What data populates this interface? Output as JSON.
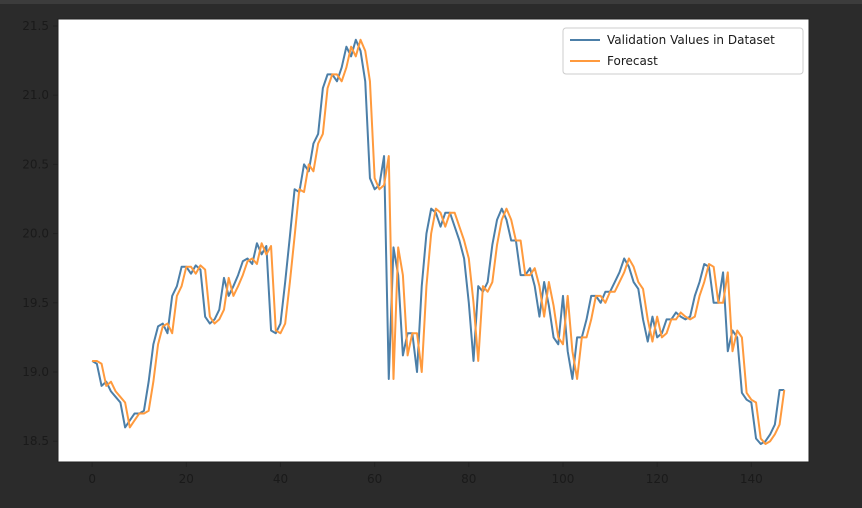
{
  "chart_data": {
    "type": "line",
    "title": "",
    "xlabel": "",
    "ylabel": "",
    "xlim": [
      -7.25,
      152.25
    ],
    "ylim": [
      18.35,
      21.55
    ],
    "x_ticks": [
      0,
      20,
      40,
      60,
      80,
      100,
      120,
      140
    ],
    "y_ticks": [
      18.5,
      19.0,
      19.5,
      20.0,
      20.5,
      21.0,
      21.5
    ],
    "x_tick_labels": [
      "0",
      "20",
      "40",
      "60",
      "80",
      "100",
      "120",
      "140"
    ],
    "y_tick_labels": [
      "18.5",
      "19.0",
      "19.5",
      "20.0",
      "20.5",
      "21.0",
      "21.5"
    ],
    "grid": false,
    "legend_position": "top-right",
    "series": [
      {
        "name": "Validation Values in Dataset",
        "color": "#4c7fa8",
        "x_start": 0,
        "values": [
          19.08,
          19.06,
          18.9,
          18.93,
          18.86,
          18.82,
          18.78,
          18.6,
          18.65,
          18.7,
          18.7,
          18.72,
          18.93,
          19.2,
          19.33,
          19.35,
          19.28,
          19.55,
          19.62,
          19.76,
          19.76,
          19.71,
          19.77,
          19.74,
          19.4,
          19.35,
          19.38,
          19.45,
          19.68,
          19.55,
          19.62,
          19.7,
          19.8,
          19.82,
          19.78,
          19.93,
          19.85,
          19.91,
          19.3,
          19.28,
          19.35,
          19.65,
          19.98,
          20.32,
          20.3,
          20.5,
          20.45,
          20.65,
          20.72,
          21.05,
          21.15,
          21.15,
          21.1,
          21.2,
          21.35,
          21.28,
          21.4,
          21.32,
          21.1,
          20.4,
          20.32,
          20.35,
          20.56,
          18.95,
          19.9,
          19.7,
          19.12,
          19.28,
          19.28,
          19.0,
          19.62,
          20.0,
          20.18,
          20.15,
          20.05,
          20.15,
          20.15,
          20.05,
          19.95,
          19.82,
          19.5,
          19.08,
          19.62,
          19.58,
          19.65,
          19.92,
          20.1,
          20.18,
          20.1,
          19.95,
          19.95,
          19.7,
          19.7,
          19.75,
          19.62,
          19.4,
          19.65,
          19.48,
          19.25,
          19.2,
          19.55,
          19.15,
          18.95,
          19.25,
          19.25,
          19.38,
          19.55,
          19.55,
          19.5,
          19.58,
          19.58,
          19.65,
          19.72,
          19.82,
          19.76,
          19.65,
          19.6,
          19.38,
          19.22,
          19.4,
          19.25,
          19.28,
          19.38,
          19.38,
          19.43,
          19.4,
          19.38,
          19.4,
          19.55,
          19.65,
          19.78,
          19.76,
          19.5,
          19.5,
          19.72,
          19.15,
          19.3,
          19.25,
          18.85,
          18.8,
          18.78,
          18.52,
          18.48,
          18.5,
          18.55,
          18.62,
          18.87,
          18.87
        ]
      },
      {
        "name": "Forecast",
        "color": "#ff9a3d",
        "x_start": 0,
        "values": [
          19.08,
          19.08,
          19.06,
          18.9,
          18.93,
          18.86,
          18.82,
          18.78,
          18.6,
          18.65,
          18.7,
          18.7,
          18.72,
          18.93,
          19.2,
          19.33,
          19.35,
          19.28,
          19.55,
          19.62,
          19.76,
          19.76,
          19.71,
          19.77,
          19.74,
          19.4,
          19.35,
          19.38,
          19.45,
          19.68,
          19.55,
          19.62,
          19.7,
          19.8,
          19.82,
          19.78,
          19.93,
          19.85,
          19.91,
          19.3,
          19.28,
          19.35,
          19.65,
          19.98,
          20.32,
          20.3,
          20.5,
          20.45,
          20.65,
          20.72,
          21.05,
          21.15,
          21.15,
          21.1,
          21.2,
          21.35,
          21.28,
          21.4,
          21.32,
          21.1,
          20.4,
          20.32,
          20.35,
          20.56,
          18.95,
          19.9,
          19.7,
          19.12,
          19.28,
          19.28,
          19.0,
          19.62,
          20.0,
          20.18,
          20.15,
          20.05,
          20.15,
          20.15,
          20.05,
          19.95,
          19.82,
          19.5,
          19.08,
          19.62,
          19.58,
          19.65,
          19.92,
          20.1,
          20.18,
          20.1,
          19.95,
          19.95,
          19.7,
          19.7,
          19.75,
          19.62,
          19.4,
          19.65,
          19.48,
          19.25,
          19.2,
          19.55,
          19.15,
          18.95,
          19.25,
          19.25,
          19.38,
          19.55,
          19.55,
          19.5,
          19.58,
          19.58,
          19.65,
          19.72,
          19.82,
          19.76,
          19.65,
          19.6,
          19.38,
          19.22,
          19.4,
          19.25,
          19.28,
          19.38,
          19.38,
          19.43,
          19.4,
          19.38,
          19.4,
          19.55,
          19.65,
          19.78,
          19.76,
          19.5,
          19.5,
          19.72,
          19.15,
          19.3,
          19.25,
          18.85,
          18.8,
          18.78,
          18.52,
          18.48,
          18.5,
          18.55,
          18.62,
          18.87
        ]
      }
    ]
  }
}
